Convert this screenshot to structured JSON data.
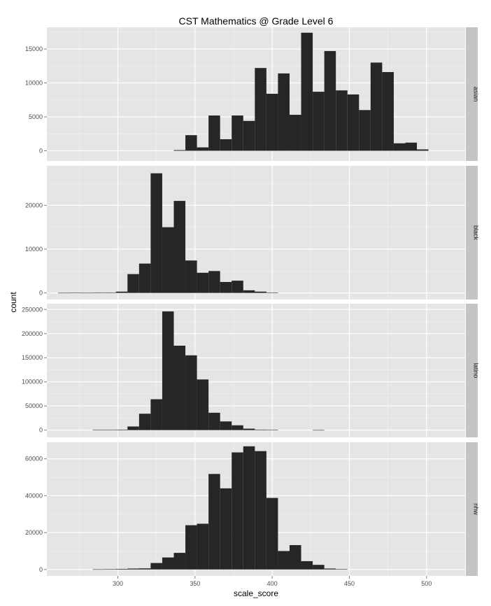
{
  "chart_data": {
    "type": "bar",
    "title": "CST Mathematics @ Grade Level 6",
    "xlabel": "scale_score",
    "ylabel": "count",
    "xlim": [
      254,
      525
    ],
    "x_ticks": [
      300,
      350,
      400,
      450,
      500
    ],
    "bin_width": 7.5,
    "bar_color": "#262626",
    "panel_background": "#e5e5e5",
    "strip_background": "#c4c4c4",
    "grid": true,
    "facets": [
      {
        "label": "asian",
        "ylim": [
          -1500,
          18200
        ],
        "y_ticks": [
          0,
          5000,
          10000,
          15000
        ],
        "bins": [
          {
            "x": 340,
            "count": 100
          },
          {
            "x": 347.5,
            "count": 2300
          },
          {
            "x": 355,
            "count": 500
          },
          {
            "x": 362.5,
            "count": 5200
          },
          {
            "x": 370,
            "count": 1700
          },
          {
            "x": 377.5,
            "count": 5200
          },
          {
            "x": 385,
            "count": 4400
          },
          {
            "x": 392.5,
            "count": 12200
          },
          {
            "x": 400,
            "count": 8400
          },
          {
            "x": 407.5,
            "count": 11400
          },
          {
            "x": 415,
            "count": 5300
          },
          {
            "x": 422.5,
            "count": 17400
          },
          {
            "x": 430,
            "count": 8700
          },
          {
            "x": 437.5,
            "count": 14700
          },
          {
            "x": 445,
            "count": 8900
          },
          {
            "x": 452.5,
            "count": 8300
          },
          {
            "x": 460,
            "count": 6000
          },
          {
            "x": 467.5,
            "count": 13000
          },
          {
            "x": 475,
            "count": 11600
          },
          {
            "x": 482.5,
            "count": 1100
          },
          {
            "x": 490,
            "count": 1200
          },
          {
            "x": 497.5,
            "count": 200
          }
        ]
      },
      {
        "label": "black",
        "ylim": [
          -1500,
          29000
        ],
        "y_ticks": [
          0,
          10000,
          20000
        ],
        "bins": [
          {
            "x": 265,
            "count": 20
          },
          {
            "x": 272.5,
            "count": 50
          },
          {
            "x": 280,
            "count": 20
          },
          {
            "x": 287.5,
            "count": 100
          },
          {
            "x": 295,
            "count": 100
          },
          {
            "x": 302.5,
            "count": 300
          },
          {
            "x": 310,
            "count": 4300
          },
          {
            "x": 317.5,
            "count": 6700
          },
          {
            "x": 325,
            "count": 27300
          },
          {
            "x": 332.5,
            "count": 15000
          },
          {
            "x": 340,
            "count": 21000
          },
          {
            "x": 347.5,
            "count": 7400
          },
          {
            "x": 355,
            "count": 4600
          },
          {
            "x": 362.5,
            "count": 5000
          },
          {
            "x": 370,
            "count": 2500
          },
          {
            "x": 377.5,
            "count": 2800
          },
          {
            "x": 385,
            "count": 600
          },
          {
            "x": 392.5,
            "count": 300
          },
          {
            "x": 400,
            "count": 100
          }
        ]
      },
      {
        "label": "latino",
        "ylim": [
          -15000,
          262000
        ],
        "y_ticks": [
          0,
          50000,
          100000,
          150000,
          200000,
          250000
        ],
        "bins": [
          {
            "x": 287.5,
            "count": 500
          },
          {
            "x": 295,
            "count": 800
          },
          {
            "x": 302.5,
            "count": 1000
          },
          {
            "x": 310,
            "count": 7500
          },
          {
            "x": 317.5,
            "count": 34000
          },
          {
            "x": 325,
            "count": 64000
          },
          {
            "x": 332.5,
            "count": 246000
          },
          {
            "x": 340,
            "count": 175000
          },
          {
            "x": 347.5,
            "count": 155000
          },
          {
            "x": 355,
            "count": 105000
          },
          {
            "x": 362.5,
            "count": 36000
          },
          {
            "x": 370,
            "count": 18000
          },
          {
            "x": 377.5,
            "count": 10000
          },
          {
            "x": 385,
            "count": 3000
          },
          {
            "x": 392.5,
            "count": 1000
          },
          {
            "x": 400,
            "count": 500
          },
          {
            "x": 430,
            "count": 200
          }
        ]
      },
      {
        "label": "nhw",
        "ylim": [
          -3500,
          69000
        ],
        "y_ticks": [
          0,
          20000,
          40000,
          60000
        ],
        "bins": [
          {
            "x": 287.5,
            "count": 100
          },
          {
            "x": 295,
            "count": 200
          },
          {
            "x": 302.5,
            "count": 300
          },
          {
            "x": 310,
            "count": 500
          },
          {
            "x": 317.5,
            "count": 600
          },
          {
            "x": 325,
            "count": 3500
          },
          {
            "x": 332.5,
            "count": 6500
          },
          {
            "x": 340,
            "count": 9000
          },
          {
            "x": 347.5,
            "count": 24000
          },
          {
            "x": 355,
            "count": 24800
          },
          {
            "x": 362.5,
            "count": 51800
          },
          {
            "x": 370,
            "count": 44000
          },
          {
            "x": 377.5,
            "count": 63500
          },
          {
            "x": 385,
            "count": 66800
          },
          {
            "x": 392.5,
            "count": 64200
          },
          {
            "x": 400,
            "count": 38800
          },
          {
            "x": 407.5,
            "count": 10000
          },
          {
            "x": 415,
            "count": 13200
          },
          {
            "x": 422.5,
            "count": 4500
          },
          {
            "x": 430,
            "count": 2500
          },
          {
            "x": 437.5,
            "count": 500
          },
          {
            "x": 445,
            "count": 200
          }
        ]
      }
    ]
  }
}
